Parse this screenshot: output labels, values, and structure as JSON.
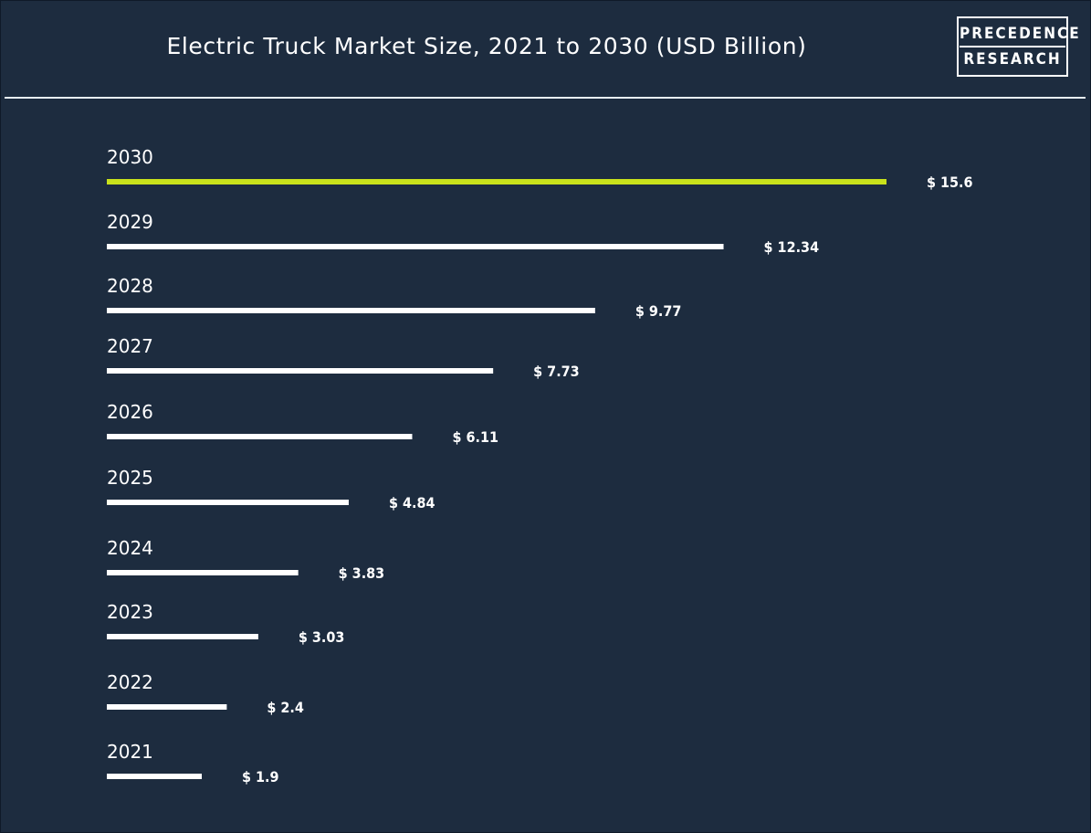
{
  "header": {
    "title": "Electric Truck Market Size, 2021 to 2030 (USD Billion)",
    "logo_line1": "PRECEDENCE",
    "logo_line2": "RESEARCH"
  },
  "colors": {
    "background": "#1d2c3f",
    "bar": "#ffffff",
    "highlight_bar": "#c9e21b",
    "text": "#ffffff"
  },
  "chart_data": {
    "type": "bar",
    "orientation": "horizontal",
    "title": "Electric Truck Market Size, 2021 to 2030 (USD Billion)",
    "categories": [
      "2030",
      "2029",
      "2028",
      "2027",
      "2026",
      "2025",
      "2024",
      "2023",
      "2022",
      "2021"
    ],
    "values": [
      15.6,
      12.34,
      9.77,
      7.73,
      6.11,
      4.84,
      3.83,
      3.03,
      2.4,
      1.9
    ],
    "value_labels": [
      "$ 15.6",
      "$ 12.34",
      "$ 9.77",
      "$ 7.73",
      "$ 6.11",
      "$ 4.84",
      "$ 3.83",
      "$ 3.03",
      "$ 2.4",
      "$ 1.9"
    ],
    "highlight_category": "2030",
    "xlabel": "",
    "ylabel": "",
    "grid": false,
    "legend": "none"
  }
}
